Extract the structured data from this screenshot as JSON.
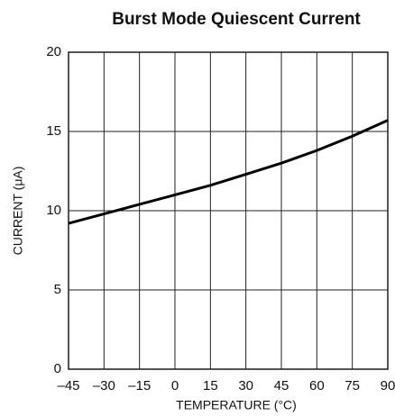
{
  "chart_data": {
    "type": "line",
    "title": "Burst Mode Quiescent Current",
    "x_label": "TEMPERATURE (°C)",
    "y_label": "CURRENT (μA)",
    "x": [
      -45,
      -30,
      -15,
      0,
      15,
      30,
      45,
      60,
      75,
      90
    ],
    "values": [
      9.2,
      9.8,
      10.4,
      11.0,
      11.6,
      12.3,
      13.0,
      13.8,
      14.7,
      15.7
    ],
    "color": "#000000",
    "xlim": [
      -45,
      90
    ],
    "xticks": [
      {
        "value": -45,
        "label": "–45"
      },
      {
        "value": -30,
        "label": "–30"
      },
      {
        "value": -15,
        "label": "–15"
      },
      0,
      15,
      30,
      45,
      60,
      75,
      90
    ],
    "ylim": [
      0,
      20
    ],
    "yticks": [
      0,
      5,
      10,
      15,
      20
    ],
    "grid": true
  }
}
